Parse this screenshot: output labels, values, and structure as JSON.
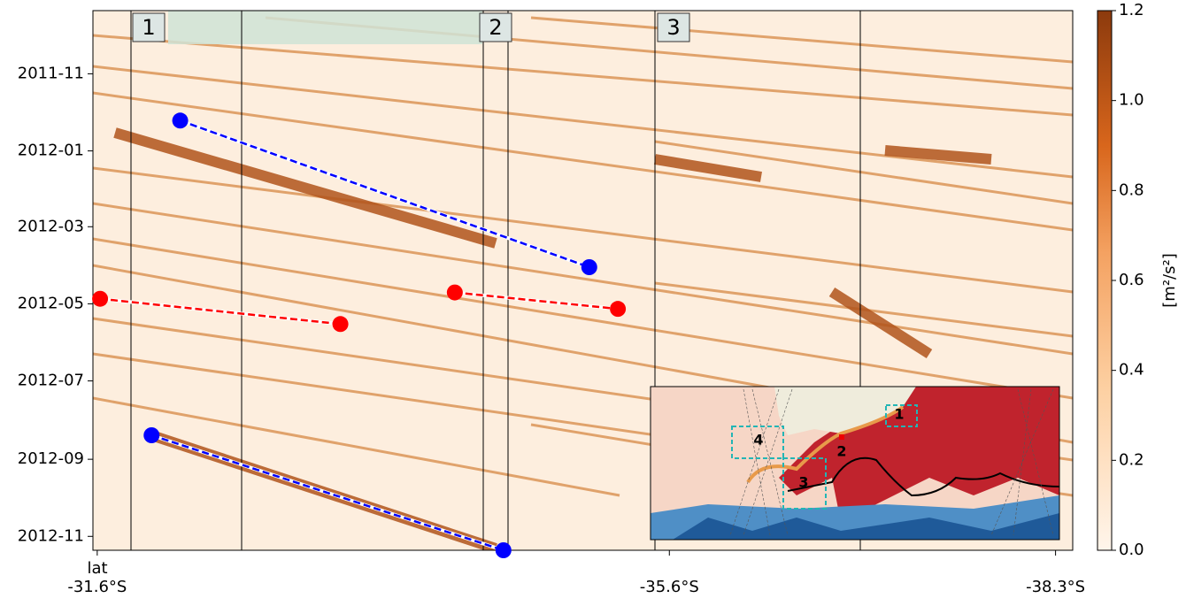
{
  "chart_data": {
    "type": "line",
    "x_axis_label": "lat",
    "xlim": [
      -31.57,
      -38.42
    ],
    "xticks": [
      {
        "value": -31.6,
        "label": "-31.6°S"
      },
      {
        "value": -35.6,
        "label": "-35.6°S"
      },
      {
        "value": -38.3,
        "label": "-38.3°S"
      }
    ],
    "ylim": [
      "2011-09-12",
      "2012-11-12"
    ],
    "yticks": [
      "2011-11",
      "2012-01",
      "2012-03",
      "2012-05",
      "2012-07",
      "2012-09",
      "2012-11"
    ],
    "regions": [
      "1",
      "2",
      "3"
    ],
    "series": [
      {
        "color": "#0000ff",
        "x": [
          -32.18,
          -35.04
        ],
        "y": [
          "2011-12-08",
          "2012-04-02"
        ]
      },
      {
        "color": "#ff0000",
        "x": [
          -31.62,
          -33.3
        ],
        "y": [
          "2012-04-27",
          "2012-05-17"
        ]
      },
      {
        "color": "#ff0000",
        "x": [
          -34.1,
          -35.24
        ],
        "y": [
          "2012-04-22",
          "2012-05-05"
        ]
      },
      {
        "color": "#0000ff",
        "x": [
          -31.98,
          -34.44
        ],
        "y": [
          "2012-08-13",
          "2012-11-12"
        ]
      }
    ],
    "colorbar": {
      "label": "[m²/s²]",
      "lim": [
        0,
        1.2
      ],
      "ticks": [
        {
          "value": 0,
          "label": "0.0"
        },
        0.2,
        0.4,
        0.6,
        0.8,
        {
          "value": 1,
          "label": "1.0"
        },
        1.2
      ]
    },
    "inset": {
      "labels": [
        "1",
        "2",
        "3",
        "4"
      ]
    }
  }
}
